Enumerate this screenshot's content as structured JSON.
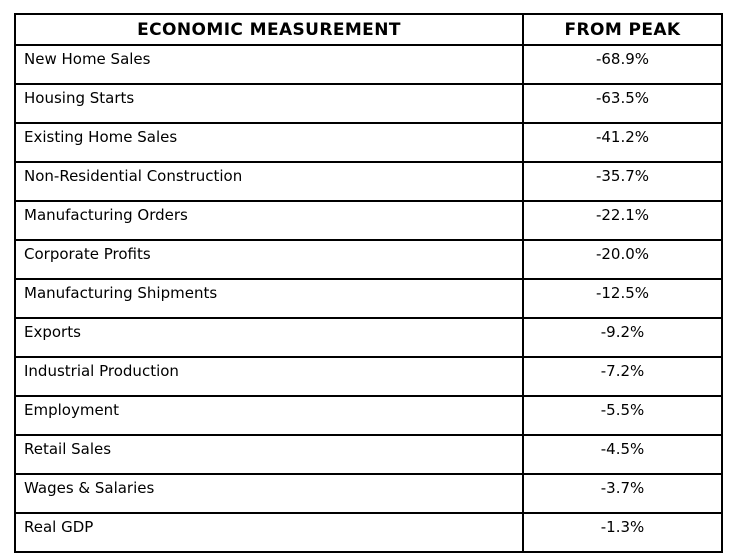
{
  "colors": {
    "border": "#000000",
    "text": "#000000",
    "background": "#ffffff"
  },
  "table": {
    "columns": [
      {
        "header": "ECONOMIC MEASUREMENT"
      },
      {
        "header": "FROM PEAK"
      }
    ],
    "rows": [
      {
        "measurement": "New Home Sales",
        "from_peak": "-68.9%"
      },
      {
        "measurement": "Housing Starts",
        "from_peak": "-63.5%"
      },
      {
        "measurement": "Existing Home Sales",
        "from_peak": "-41.2%"
      },
      {
        "measurement": "Non-Residential Construction",
        "from_peak": "-35.7%"
      },
      {
        "measurement": "Manufacturing Orders",
        "from_peak": "-22.1%"
      },
      {
        "measurement": "Corporate Profits",
        "from_peak": "-20.0%"
      },
      {
        "measurement": "Manufacturing Shipments",
        "from_peak": "-12.5%"
      },
      {
        "measurement": "Exports",
        "from_peak": "-9.2%"
      },
      {
        "measurement": "Industrial Production",
        "from_peak": "-7.2%"
      },
      {
        "measurement": "Employment",
        "from_peak": "-5.5%"
      },
      {
        "measurement": "Retail Sales",
        "from_peak": "-4.5%"
      },
      {
        "measurement": "Wages & Salaries",
        "from_peak": "-3.7%"
      },
      {
        "measurement": "Real GDP",
        "from_peak": "-1.3%"
      }
    ]
  }
}
